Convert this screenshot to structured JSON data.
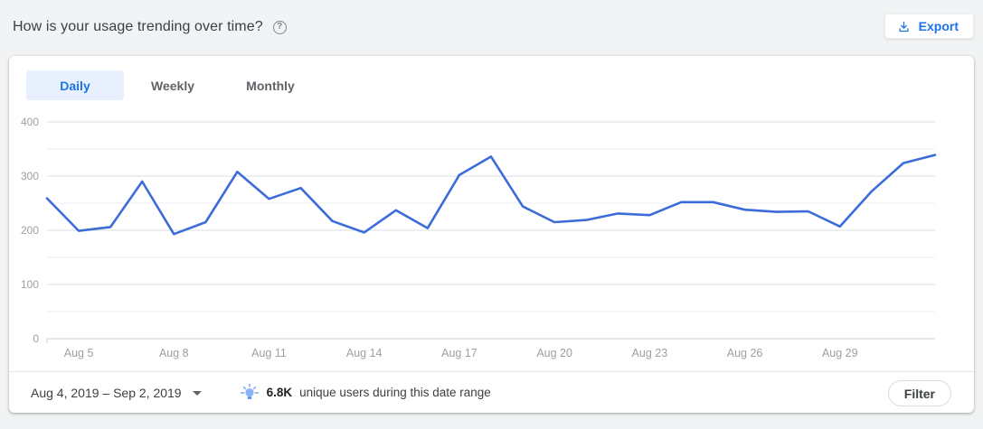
{
  "header": {
    "title": "How is your usage trending over time?",
    "help_icon_glyph": "?",
    "export_label": "Export"
  },
  "tabs": [
    {
      "label": "Daily",
      "active": true
    },
    {
      "label": "Weekly",
      "active": false
    },
    {
      "label": "Monthly",
      "active": false
    }
  ],
  "chart_data": {
    "type": "line",
    "title": "Daily usage trend",
    "x": [
      "Aug 4",
      "Aug 5",
      "Aug 6",
      "Aug 7",
      "Aug 8",
      "Aug 9",
      "Aug 10",
      "Aug 11",
      "Aug 12",
      "Aug 13",
      "Aug 14",
      "Aug 15",
      "Aug 16",
      "Aug 17",
      "Aug 18",
      "Aug 19",
      "Aug 20",
      "Aug 21",
      "Aug 22",
      "Aug 23",
      "Aug 24",
      "Aug 25",
      "Aug 26",
      "Aug 27",
      "Aug 28",
      "Aug 29",
      "Aug 30",
      "Aug 31",
      "Sep 1"
    ],
    "values": [
      259,
      199,
      206,
      290,
      193,
      215,
      308,
      258,
      278,
      217,
      196,
      237,
      204,
      302,
      336,
      244,
      215,
      219,
      231,
      228,
      252,
      252,
      238,
      234,
      235,
      207,
      272,
      324,
      339
    ],
    "x_tick_labels": [
      "Aug 5",
      "Aug 8",
      "Aug 11",
      "Aug 14",
      "Aug 17",
      "Aug 20",
      "Aug 23",
      "Aug 26",
      "Aug 29"
    ],
    "ylim": [
      0,
      400
    ],
    "ytick_labels": [
      0,
      100,
      200,
      300,
      400
    ],
    "grid_step": 50,
    "grid": "horizontal",
    "legend": "none",
    "line_color": "#3b6cd9",
    "major_grid_color": "#dadce0",
    "minor_grid_color": "#eceef1",
    "axis_line_color": "#c9ccd0",
    "tick_label_color": "#9aa0a6"
  },
  "footer": {
    "date_range": "Aug 4, 2019 – Sep 2, 2019",
    "insight_value": "6.8K",
    "insight_text": "unique users during this date range",
    "filter_label": "Filter"
  },
  "colors": {
    "accent_blue": "#1a73e8",
    "active_tab_bg": "#e8f0fe",
    "page_bg": "#f1f3f4",
    "card_bg": "#ffffff"
  }
}
